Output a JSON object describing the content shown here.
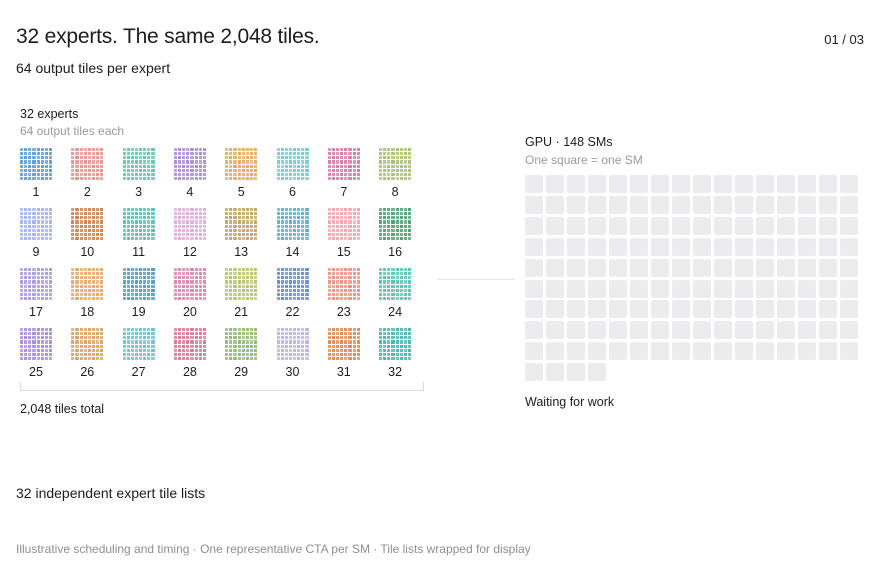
{
  "header": {
    "title": "32 experts. The same 2,048 tiles.",
    "subtitle": "64 output tiles per expert",
    "page_counter": "01 / 03"
  },
  "experts_panel": {
    "title": "32 experts",
    "subtitle": "64 output tiles each",
    "total_label": "2,048 tiles total",
    "tiles_per_expert": 64,
    "experts": [
      {
        "label": "1",
        "color": "#5b9bd5"
      },
      {
        "label": "2",
        "color": "#e8908c"
      },
      {
        "label": "3",
        "color": "#5fc7b0"
      },
      {
        "label": "4",
        "color": "#a98ad6"
      },
      {
        "label": "5",
        "color": "#e3a95e"
      },
      {
        "label": "6",
        "color": "#6ccbd8"
      },
      {
        "label": "7",
        "color": "#d27aa3"
      },
      {
        "label": "8",
        "color": "#a8c16c"
      },
      {
        "label": "9",
        "color": "#9fb4ec"
      },
      {
        "label": "10",
        "color": "#c9834a"
      },
      {
        "label": "11",
        "color": "#55bfb4"
      },
      {
        "label": "12",
        "color": "#deaad8"
      },
      {
        "label": "13",
        "color": "#c2a363"
      },
      {
        "label": "14",
        "color": "#59aed6"
      },
      {
        "label": "15",
        "color": "#eea5ab"
      },
      {
        "label": "16",
        "color": "#4b9f72"
      },
      {
        "label": "17",
        "color": "#a89ade"
      },
      {
        "label": "18",
        "color": "#e4a86a"
      },
      {
        "label": "19",
        "color": "#4f9cc0"
      },
      {
        "label": "20",
        "color": "#d985ab"
      },
      {
        "label": "21",
        "color": "#b5c46e"
      },
      {
        "label": "22",
        "color": "#5f8fd0"
      },
      {
        "label": "23",
        "color": "#e89180"
      },
      {
        "label": "24",
        "color": "#54c4b0"
      },
      {
        "label": "25",
        "color": "#a98ad6"
      },
      {
        "label": "26",
        "color": "#d6a35c"
      },
      {
        "label": "27",
        "color": "#66c2d6"
      },
      {
        "label": "28",
        "color": "#d7778f"
      },
      {
        "label": "29",
        "color": "#8fba73"
      },
      {
        "label": "30",
        "color": "#b6b4ea"
      },
      {
        "label": "31",
        "color": "#d98a4f"
      },
      {
        "label": "32",
        "color": "#45b4b0"
      }
    ]
  },
  "gpu_panel": {
    "title": "GPU · 148 SMs",
    "subtitle": "One square = one SM",
    "sm_count": 148,
    "status": "Waiting for work",
    "idle_color": "#ececee"
  },
  "tile_lists_label": "32 independent expert tile lists",
  "footer": "Illustrative scheduling and timing · One representative CTA per SM · Tile lists wrapped for display"
}
